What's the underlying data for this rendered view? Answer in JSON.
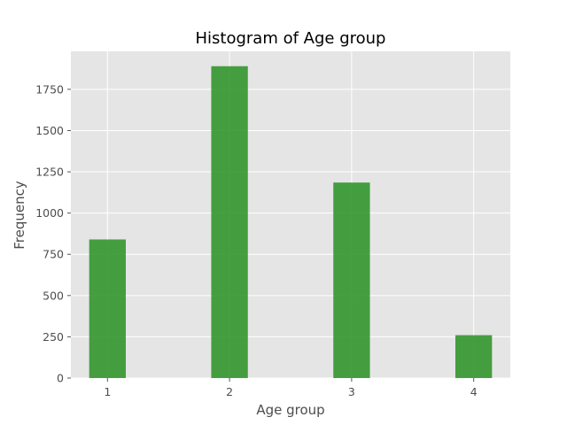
{
  "chart_data": {
    "type": "bar",
    "title": "Histogram of Age group",
    "xlabel": "Age group",
    "ylabel": "Frequency",
    "categories": [
      "1",
      "2",
      "3",
      "4"
    ],
    "x": [
      1,
      2,
      3,
      4
    ],
    "values": [
      840,
      1890,
      1185,
      260
    ],
    "ylim": [
      0,
      1980
    ],
    "xlim": [
      0.7,
      4.3
    ],
    "yticks": [
      0,
      250,
      500,
      750,
      1000,
      1250,
      1500,
      1750
    ],
    "ytick_labels": [
      "0",
      "250",
      "500",
      "750",
      "1000",
      "1250",
      "1500",
      "1750"
    ],
    "xticks": [
      1,
      2,
      3,
      4
    ],
    "xtick_labels": [
      "1",
      "2",
      "3",
      "4"
    ],
    "grid": true,
    "legend": "none",
    "bar_color": "#2e9428",
    "plot_background": "#e5e5e5",
    "grid_color": "#ffffff"
  }
}
